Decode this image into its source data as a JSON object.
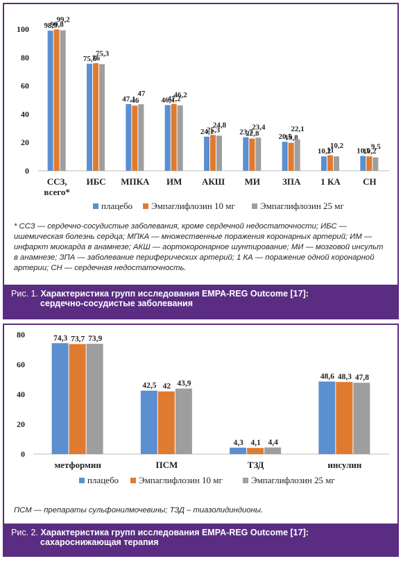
{
  "colors": {
    "placebo": "#5b8fd0",
    "empa10": "#e07a2e",
    "empa25": "#9e9e9e",
    "frame": "#5a2d82"
  },
  "figure1": {
    "chart_data": {
      "type": "bar",
      "categories": [
        "ССЗ, всего*",
        "ИБС",
        "МПКА",
        "ИМ",
        "АКШ",
        "МИ",
        "ЗПА",
        "1 КА",
        "СН"
      ],
      "series": [
        {
          "name": "плацебо",
          "values": [
            98.9,
            75.6,
            47.1,
            46.4,
            24.1,
            23.7,
            20.5,
            10.2,
            10.5
          ]
        },
        {
          "name": "Эмпаглифлозин 10 мг",
          "values": [
            99.8,
            76,
            46,
            47.2,
            25.3,
            22.8,
            19.8,
            11,
            10.2
          ]
        },
        {
          "name": "Эмпаглифлозин 25 мг",
          "values": [
            99.2,
            75.3,
            47,
            46.2,
            24.8,
            23.4,
            22.1,
            10.2,
            9.5
          ]
        }
      ],
      "labels": [
        [
          "98,9",
          "75,6",
          "47,1",
          "46,4",
          "24,1",
          "23,7",
          "20,5",
          "10,2",
          "10,5"
        ],
        [
          "99,8",
          "76",
          "46",
          "47,2",
          "25,3",
          "22,8",
          "19,8",
          "11",
          "10,2"
        ],
        [
          "99,2",
          "75,3",
          "47",
          "46,2",
          "24,8",
          "23,4",
          "22,1",
          "10,2",
          "9,5"
        ]
      ],
      "yticks": [
        "0",
        "20",
        "40",
        "60",
        "80",
        "100"
      ],
      "ylim": [
        0,
        100
      ],
      "legend_position": "bottom"
    },
    "footnote": "* ССЗ — сердечно-сосудистые заболевания, кроме сердечной недостаточности; ИБС — ишемическая болезнь сердца; МПКА — множественные поражения коронарных артерий; ИМ — инфаркт миокарда в анамнезе; АКШ — аортокоронарное шунтирование; МИ — мозговой инсульт в анамнезе; ЗПА — заболевание периферических артерий; 1 КА — поражение одной коронарной артерии; СН — сердечная недостаточность.",
    "caption_prefix": "Рис. 1.",
    "caption_line1": "Характеристика групп исследования EMPA-REG Outcome [17]:",
    "caption_line2": "сердечно-сосудистые заболевания"
  },
  "figure2": {
    "chart_data": {
      "type": "bar",
      "categories": [
        "метформин",
        "ПСМ",
        "ТЗД",
        "инсулин"
      ],
      "series": [
        {
          "name": "плацебо",
          "values": [
            74.3,
            42.5,
            4.3,
            48.6
          ]
        },
        {
          "name": "Эмпаглифлозин 10 мг",
          "values": [
            73.7,
            42,
            4.1,
            48.3
          ]
        },
        {
          "name": "Эмпаглифлозин 25 мг",
          "values": [
            73.9,
            43.9,
            4.4,
            47.8
          ]
        }
      ],
      "labels": [
        [
          "74,3",
          "42,5",
          "4,3",
          "48,6"
        ],
        [
          "73,7",
          "42",
          "4,1",
          "48,3"
        ],
        [
          "73,9",
          "43,9",
          "4,4",
          "47,8"
        ]
      ],
      "yticks": [
        "0",
        "20",
        "40",
        "60",
        "80"
      ],
      "ylim": [
        0,
        80
      ],
      "legend_position": "bottom"
    },
    "footnote": "ПСМ — препараты сульфонилмочевины; ТЗД – тиазолидиндионы.",
    "caption_prefix": "Рис. 2.",
    "caption_line1": "Характеристика групп исследования EMPA-REG Outcome [17]:",
    "caption_line2": "сахароснижающая терапия"
  }
}
